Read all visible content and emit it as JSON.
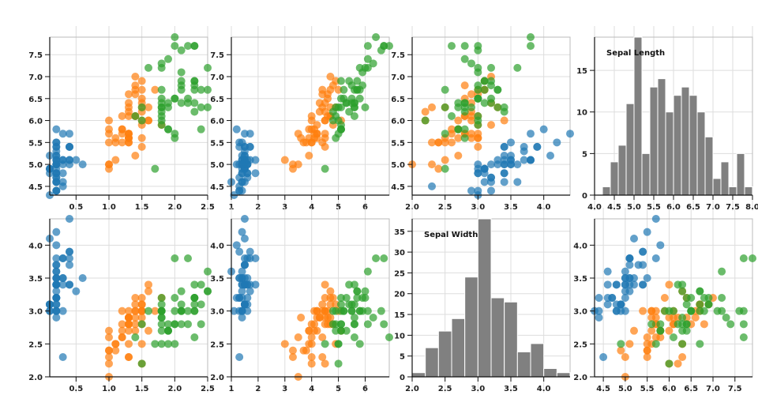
{
  "chart_data": {
    "type": "scatter",
    "grid": true,
    "colors": [
      "#1f77b4",
      "#ff7f0e",
      "#2ca02c"
    ],
    "bar_color": "#808080",
    "point_opacity": 0.7,
    "series": [
      {
        "color": "#1f77b4",
        "sepal_length": [
          5.1,
          4.9,
          4.7,
          4.6,
          5.0,
          5.4,
          4.6,
          5.0,
          4.4,
          4.9,
          5.4,
          4.8,
          4.8,
          4.3,
          5.8,
          5.7,
          5.4,
          5.1,
          5.7,
          5.1,
          5.4,
          5.1,
          4.6,
          5.1,
          4.8,
          5.0,
          5.0,
          5.2,
          5.2,
          4.7,
          4.8,
          5.4,
          5.2,
          5.5,
          4.9,
          5.0,
          5.5,
          4.9,
          4.4,
          5.1,
          5.0,
          4.5,
          4.4,
          5.0,
          5.1,
          4.8,
          5.1,
          4.6,
          5.3,
          5.0
        ],
        "sepal_width": [
          3.5,
          3.0,
          3.2,
          3.1,
          3.6,
          3.9,
          3.4,
          3.4,
          2.9,
          3.1,
          3.7,
          3.4,
          3.0,
          3.0,
          4.0,
          4.4,
          3.9,
          3.5,
          3.8,
          3.8,
          3.4,
          3.7,
          3.6,
          3.3,
          3.4,
          3.0,
          3.4,
          3.5,
          3.4,
          3.2,
          3.1,
          3.4,
          4.1,
          4.2,
          3.1,
          3.2,
          3.5,
          3.1,
          3.0,
          3.4,
          3.5,
          2.3,
          3.2,
          3.5,
          3.8,
          3.0,
          3.8,
          3.2,
          3.7,
          3.3
        ],
        "petal_length": [
          1.4,
          1.4,
          1.3,
          1.5,
          1.4,
          1.7,
          1.4,
          1.5,
          1.4,
          1.5,
          1.5,
          1.6,
          1.4,
          1.1,
          1.2,
          1.5,
          1.3,
          1.4,
          1.7,
          1.5,
          1.7,
          1.5,
          1.0,
          1.7,
          1.9,
          1.6,
          1.6,
          1.5,
          1.4,
          1.6,
          1.6,
          1.5,
          1.5,
          1.4,
          1.5,
          1.2,
          1.3,
          1.5,
          1.3,
          1.5,
          1.3,
          1.3,
          1.3,
          1.6,
          1.9,
          1.4,
          1.6,
          1.4,
          1.5,
          1.4
        ],
        "petal_width": [
          0.2,
          0.2,
          0.2,
          0.2,
          0.2,
          0.4,
          0.3,
          0.2,
          0.2,
          0.1,
          0.2,
          0.2,
          0.1,
          0.1,
          0.2,
          0.4,
          0.4,
          0.3,
          0.3,
          0.3,
          0.2,
          0.4,
          0.2,
          0.5,
          0.2,
          0.2,
          0.4,
          0.2,
          0.2,
          0.2,
          0.2,
          0.4,
          0.1,
          0.2,
          0.1,
          0.2,
          0.2,
          0.1,
          0.2,
          0.2,
          0.3,
          0.3,
          0.2,
          0.6,
          0.4,
          0.3,
          0.2,
          0.2,
          0.2,
          0.2
        ]
      },
      {
        "color": "#ff7f0e",
        "sepal_length": [
          7.0,
          6.4,
          6.9,
          5.5,
          6.5,
          5.7,
          6.3,
          4.9,
          6.6,
          5.2,
          5.0,
          5.9,
          6.0,
          6.1,
          5.6,
          6.7,
          5.6,
          5.8,
          6.2,
          5.6,
          5.9,
          6.1,
          6.3,
          6.1,
          6.4,
          6.6,
          6.8,
          6.7,
          6.0,
          5.7,
          5.5,
          5.5,
          5.8,
          6.0,
          5.4,
          6.0,
          6.7,
          6.3,
          5.6,
          5.5,
          5.5,
          6.1,
          5.8,
          5.0,
          5.6,
          5.7,
          5.7,
          6.2,
          5.1,
          5.7
        ],
        "sepal_width": [
          3.2,
          3.2,
          3.1,
          2.3,
          2.8,
          2.8,
          3.3,
          2.4,
          2.9,
          2.7,
          2.0,
          3.0,
          2.2,
          2.9,
          2.9,
          3.1,
          3.0,
          2.7,
          2.2,
          2.5,
          3.2,
          2.8,
          2.5,
          2.8,
          2.9,
          3.0,
          2.8,
          3.0,
          2.9,
          2.6,
          2.4,
          2.4,
          2.7,
          2.7,
          3.0,
          3.4,
          3.1,
          2.3,
          3.0,
          2.5,
          2.6,
          3.0,
          2.6,
          2.3,
          2.7,
          3.0,
          2.9,
          2.9,
          2.5,
          2.8
        ],
        "petal_length": [
          4.7,
          4.5,
          4.9,
          4.0,
          4.6,
          4.5,
          4.7,
          3.3,
          4.6,
          3.9,
          3.5,
          4.2,
          4.0,
          4.7,
          3.6,
          4.4,
          4.5,
          4.1,
          4.5,
          3.9,
          4.8,
          4.0,
          4.9,
          4.7,
          4.3,
          4.4,
          4.8,
          5.0,
          4.5,
          3.5,
          3.8,
          3.7,
          3.9,
          5.1,
          4.5,
          4.5,
          4.7,
          4.4,
          4.1,
          4.0,
          4.4,
          4.6,
          4.0,
          3.3,
          4.2,
          4.2,
          4.2,
          4.3,
          3.0,
          4.1
        ],
        "petal_width": [
          1.4,
          1.5,
          1.5,
          1.3,
          1.5,
          1.3,
          1.6,
          1.0,
          1.3,
          1.4,
          1.0,
          1.5,
          1.0,
          1.4,
          1.3,
          1.4,
          1.5,
          1.0,
          1.5,
          1.1,
          1.8,
          1.3,
          1.5,
          1.2,
          1.3,
          1.4,
          1.4,
          1.7,
          1.5,
          1.0,
          1.1,
          1.0,
          1.2,
          1.6,
          1.5,
          1.6,
          1.5,
          1.3,
          1.3,
          1.3,
          1.2,
          1.4,
          1.2,
          1.0,
          1.3,
          1.2,
          1.3,
          1.3,
          1.1,
          1.3
        ]
      },
      {
        "color": "#2ca02c",
        "sepal_length": [
          6.3,
          5.8,
          7.1,
          6.3,
          6.5,
          7.6,
          4.9,
          7.3,
          6.7,
          7.2,
          6.5,
          6.4,
          6.8,
          5.7,
          5.8,
          6.4,
          6.5,
          7.7,
          7.7,
          6.0,
          6.9,
          5.6,
          7.7,
          6.3,
          6.7,
          7.2,
          6.2,
          6.1,
          6.4,
          7.2,
          7.4,
          7.9,
          6.4,
          6.3,
          6.1,
          7.7,
          6.3,
          6.4,
          6.0,
          6.9,
          6.7,
          6.9,
          5.8,
          6.8,
          6.7,
          6.7,
          6.3,
          6.5,
          6.2,
          5.9
        ],
        "sepal_width": [
          3.3,
          2.7,
          3.0,
          2.9,
          3.0,
          3.0,
          2.5,
          2.9,
          2.5,
          3.6,
          3.2,
          2.7,
          3.0,
          2.5,
          2.8,
          3.2,
          3.0,
          3.8,
          2.6,
          2.2,
          3.2,
          2.8,
          2.8,
          2.7,
          3.3,
          3.2,
          2.8,
          3.0,
          2.8,
          3.0,
          2.8,
          3.8,
          2.8,
          2.8,
          2.6,
          3.0,
          3.4,
          3.1,
          3.0,
          3.1,
          3.1,
          3.1,
          2.7,
          3.2,
          3.3,
          3.0,
          2.5,
          3.0,
          3.4,
          3.0
        ],
        "petal_length": [
          6.0,
          5.1,
          5.9,
          5.6,
          5.8,
          6.6,
          4.5,
          6.3,
          5.8,
          6.1,
          5.1,
          5.3,
          5.5,
          5.0,
          5.1,
          5.3,
          5.5,
          6.7,
          6.9,
          5.0,
          5.7,
          4.9,
          6.7,
          4.9,
          5.7,
          6.0,
          4.8,
          4.9,
          5.6,
          5.8,
          6.1,
          6.4,
          5.6,
          5.1,
          5.6,
          6.1,
          5.6,
          5.5,
          4.8,
          5.4,
          5.6,
          5.1,
          5.1,
          5.9,
          5.7,
          5.2,
          5.0,
          5.2,
          5.4,
          5.1
        ],
        "petal_width": [
          2.5,
          1.9,
          2.1,
          1.8,
          2.2,
          2.1,
          1.7,
          1.8,
          1.8,
          2.5,
          2.0,
          1.9,
          2.1,
          2.0,
          2.4,
          2.3,
          1.8,
          2.2,
          2.3,
          1.5,
          2.3,
          2.0,
          2.0,
          1.8,
          2.1,
          1.8,
          1.8,
          1.8,
          2.1,
          1.6,
          1.9,
          2.0,
          2.2,
          1.5,
          1.4,
          2.3,
          2.4,
          1.8,
          1.8,
          2.1,
          2.4,
          2.3,
          1.9,
          2.3,
          2.5,
          2.3,
          1.9,
          2.0,
          2.3,
          1.8
        ]
      }
    ],
    "panels": [
      {
        "type": "scatter",
        "x": "petal_width",
        "y": "sepal_length",
        "xlim": [
          0.1,
          2.5
        ],
        "ylim": [
          4.3,
          7.9
        ],
        "xticks": [
          0.5,
          1.0,
          1.5,
          2.0,
          2.5
        ],
        "xtick_labels": [
          "0.5",
          "1.0",
          "1.5",
          "2.0",
          "2.5"
        ],
        "yticks": [
          4.5,
          5.0,
          5.5,
          6.0,
          6.5,
          7.0,
          7.5
        ],
        "ytick_labels": [
          "4.5",
          "5.0",
          "5.5",
          "6.0",
          "6.5",
          "7.0",
          "7.5"
        ]
      },
      {
        "type": "scatter",
        "x": "petal_length",
        "y": "sepal_length",
        "xlim": [
          1,
          6.9
        ],
        "ylim": [
          4.3,
          7.9
        ],
        "xticks": [
          1,
          2,
          3,
          4,
          5,
          6
        ],
        "xtick_labels": [
          "1",
          "2",
          "3",
          "4",
          "5",
          "6"
        ],
        "yticks": [
          4.5,
          5.0,
          5.5,
          6.0,
          6.5,
          7.0,
          7.5
        ],
        "ytick_labels": [
          "4.5",
          "5.0",
          "5.5",
          "6.0",
          "6.5",
          "7.0",
          "7.5"
        ]
      },
      {
        "type": "scatter",
        "x": "sepal_width",
        "y": "sepal_length",
        "xlim": [
          2.0,
          4.4
        ],
        "ylim": [
          4.3,
          7.9
        ],
        "xticks": [
          2.0,
          2.5,
          3.0,
          3.5,
          4.0
        ],
        "xtick_labels": [
          "2.0",
          "2.5",
          "3.0",
          "3.5",
          "4.0"
        ],
        "yticks": [
          4.5,
          5.0,
          5.5,
          6.0,
          6.5,
          7.0,
          7.5
        ],
        "ytick_labels": [
          "4.5",
          "5.0",
          "5.5",
          "6.0",
          "6.5",
          "7.0",
          "7.5"
        ]
      },
      {
        "type": "histogram",
        "title": "Sepal Length",
        "xlim": [
          4.0,
          8.0
        ],
        "ylim": [
          0,
          19
        ],
        "bin_start": 4.0,
        "bin_width": 0.2,
        "counts": [
          0,
          1,
          4,
          6,
          11,
          19,
          5,
          13,
          14,
          10,
          12,
          13,
          12,
          10,
          7,
          2,
          4,
          1,
          5,
          1
        ],
        "xticks": [
          4.0,
          4.5,
          5.0,
          5.5,
          6.0,
          6.5,
          7.0,
          7.5,
          8.0
        ],
        "xtick_labels": [
          "4.0",
          "4.5",
          "5.0",
          "5.5",
          "6.0",
          "6.5",
          "7.0",
          "7.5",
          "8.0"
        ],
        "yticks": [
          0,
          5,
          10,
          15
        ],
        "ytick_labels": [
          "0",
          "5",
          "10",
          "15"
        ]
      },
      {
        "type": "scatter",
        "x": "petal_width",
        "y": "sepal_width",
        "xlim": [
          0.1,
          2.5
        ],
        "ylim": [
          2.0,
          4.4
        ],
        "xticks": [
          0.5,
          1.0,
          1.5,
          2.0,
          2.5
        ],
        "xtick_labels": [
          "0.5",
          "1.0",
          "1.5",
          "2.0",
          "2.5"
        ],
        "yticks": [
          2.0,
          2.5,
          3.0,
          3.5,
          4.0
        ],
        "ytick_labels": [
          "2.0",
          "2.5",
          "3.0",
          "3.5",
          "4.0"
        ]
      },
      {
        "type": "scatter",
        "x": "petal_length",
        "y": "sepal_width",
        "xlim": [
          1,
          6.9
        ],
        "ylim": [
          2.0,
          4.4
        ],
        "xticks": [
          1,
          2,
          3,
          4,
          5,
          6
        ],
        "xtick_labels": [
          "1",
          "2",
          "3",
          "4",
          "5",
          "6"
        ],
        "yticks": [
          2.0,
          2.5,
          3.0,
          3.5,
          4.0
        ],
        "ytick_labels": [
          "2.0",
          "2.5",
          "3.0",
          "3.5",
          "4.0"
        ]
      },
      {
        "type": "histogram",
        "title": "Sepal Width",
        "xlim": [
          2.0,
          4.4
        ],
        "ylim": [
          0,
          38
        ],
        "bin_start": 2.0,
        "bin_width": 0.2,
        "counts": [
          1,
          7,
          11,
          14,
          24,
          38,
          19,
          18,
          6,
          8,
          2,
          1
        ],
        "xticks": [
          2.0,
          2.5,
          3.0,
          3.5,
          4.0
        ],
        "xtick_labels": [
          "2.0",
          "2.5",
          "3.0",
          "3.5",
          "4.0"
        ],
        "yticks": [
          0,
          5,
          10,
          15,
          20,
          25,
          30,
          35
        ],
        "ytick_labels": [
          "0",
          "5",
          "10",
          "15",
          "20",
          "25",
          "30",
          "35"
        ]
      },
      {
        "type": "scatter",
        "x": "sepal_length",
        "y": "sepal_width",
        "xlim": [
          4.3,
          7.9
        ],
        "ylim": [
          2.0,
          4.4
        ],
        "xticks": [
          4.5,
          5.0,
          5.5,
          6.0,
          6.5,
          7.0,
          7.5
        ],
        "xtick_labels": [
          "4.5",
          "5.0",
          "5.5",
          "6.0",
          "6.5",
          "7.0",
          "7.5"
        ],
        "yticks": [
          2.0,
          2.5,
          3.0,
          3.5,
          4.0
        ],
        "ytick_labels": [
          "2.0",
          "2.5",
          "3.0",
          "3.5",
          "4.0"
        ]
      }
    ]
  }
}
